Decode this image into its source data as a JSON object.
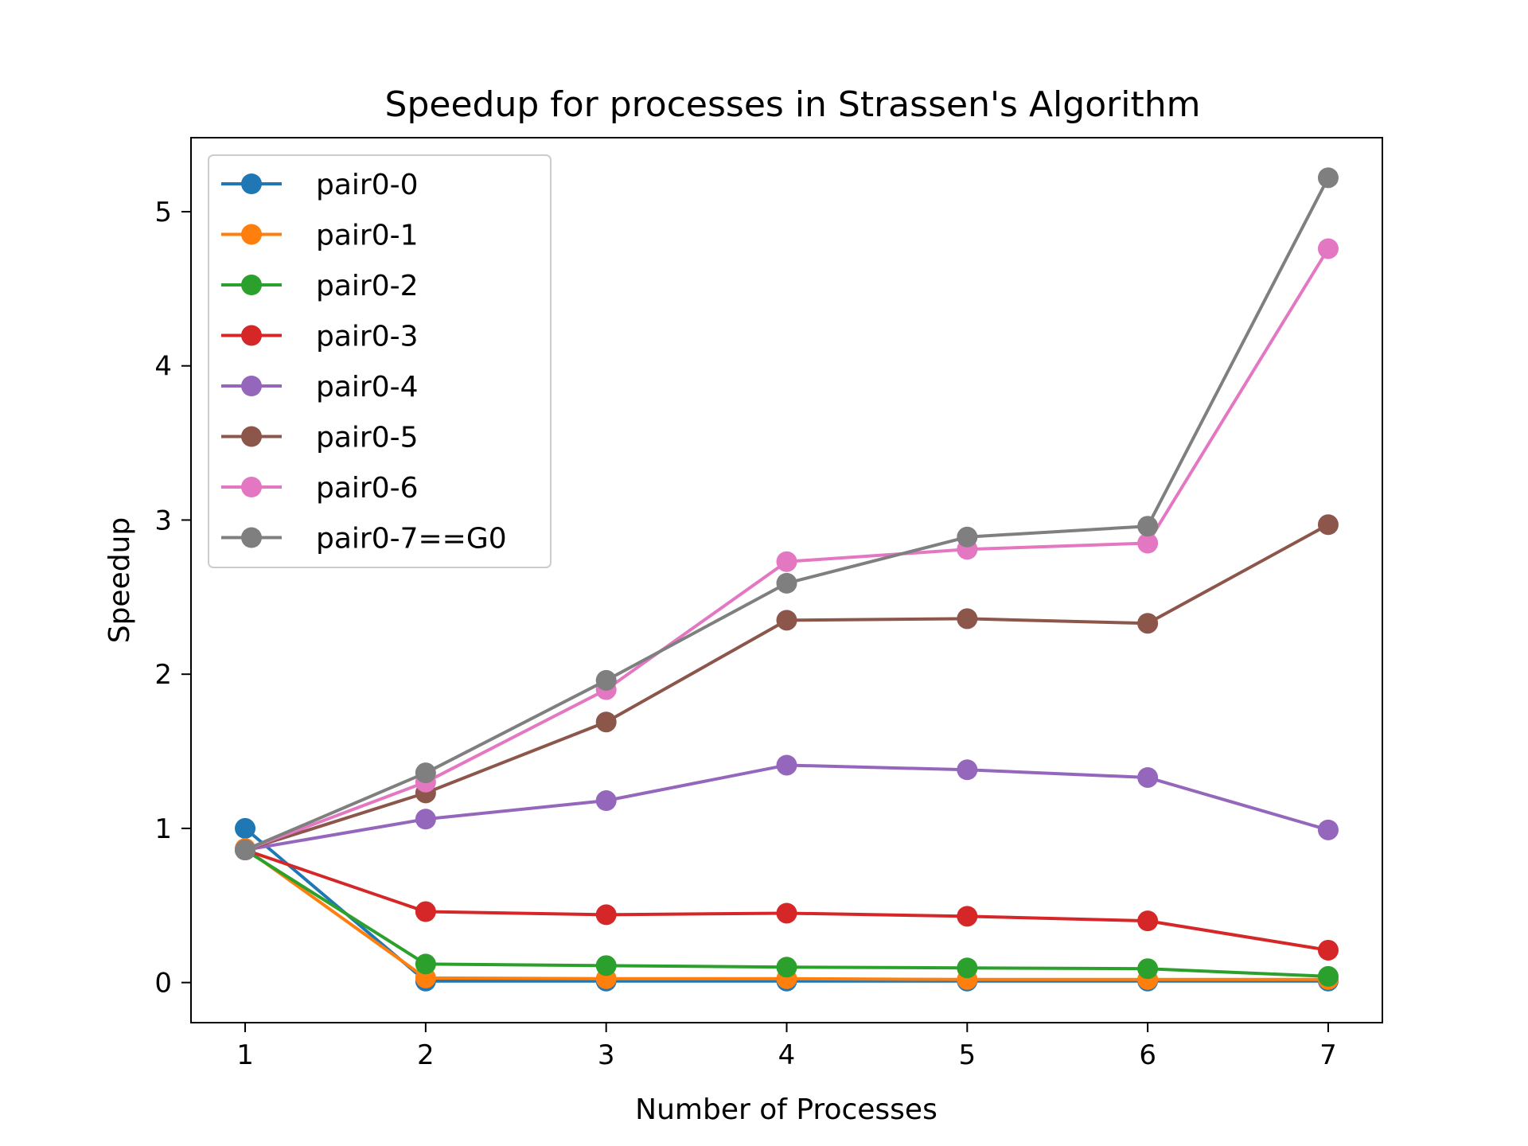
{
  "chart_data": {
    "type": "line",
    "title": "Speedup for processes in Strassen's Algorithm",
    "xlabel": "Number of Processes",
    "ylabel": "Speedup",
    "x": [
      1,
      2,
      3,
      4,
      5,
      6,
      7
    ],
    "xlim": [
      0.7,
      7.3
    ],
    "ylim": [
      -0.26,
      5.48
    ],
    "xticks": [
      1,
      2,
      3,
      4,
      5,
      6,
      7
    ],
    "yticks": [
      0,
      1,
      2,
      3,
      4,
      5
    ],
    "grid": false,
    "legend_position": "top-left",
    "series": [
      {
        "name": "pair0-0",
        "color": "#1f77b4",
        "values": [
          1.0,
          0.01,
          0.01,
          0.01,
          0.01,
          0.01,
          0.01
        ]
      },
      {
        "name": "pair0-1",
        "color": "#ff7f0e",
        "values": [
          0.87,
          0.03,
          0.025,
          0.025,
          0.02,
          0.02,
          0.02
        ]
      },
      {
        "name": "pair0-2",
        "color": "#2ca02c",
        "values": [
          0.86,
          0.12,
          0.11,
          0.1,
          0.095,
          0.09,
          0.04
        ]
      },
      {
        "name": "pair0-3",
        "color": "#d62728",
        "values": [
          0.86,
          0.46,
          0.44,
          0.45,
          0.43,
          0.4,
          0.21
        ]
      },
      {
        "name": "pair0-4",
        "color": "#9467bd",
        "values": [
          0.86,
          1.06,
          1.18,
          1.41,
          1.38,
          1.33,
          0.99
        ]
      },
      {
        "name": "pair0-5",
        "color": "#8c564b",
        "values": [
          0.86,
          1.23,
          1.69,
          2.35,
          2.36,
          2.33,
          2.97
        ]
      },
      {
        "name": "pair0-6",
        "color": "#e377c2",
        "values": [
          0.86,
          1.3,
          1.9,
          2.73,
          2.81,
          2.85,
          4.76
        ]
      },
      {
        "name": "pair0-7==G0",
        "color": "#7f7f7f",
        "values": [
          0.86,
          1.36,
          1.96,
          2.59,
          2.89,
          2.96,
          5.22
        ]
      }
    ]
  }
}
